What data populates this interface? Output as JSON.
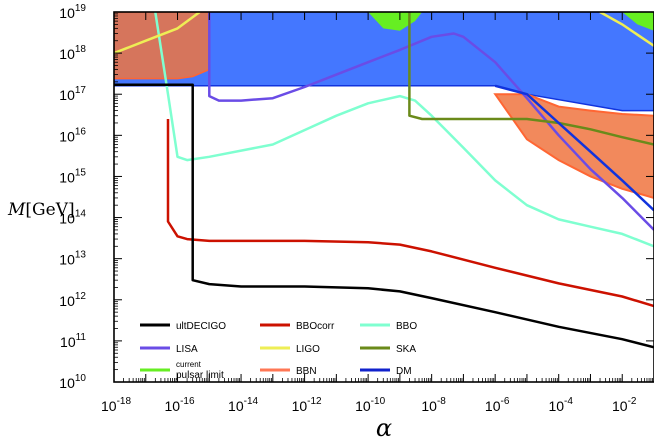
{
  "chart_data": {
    "type": "line",
    "title": "",
    "xlabel": "α",
    "ylabel_main": "M",
    "ylabel_unit": "[GeV]",
    "x_scale": "log",
    "y_scale": "log",
    "xlim": [
      1e-18,
      0.1
    ],
    "ylim": [
      10000000000.0,
      1e+19
    ],
    "x_tick_exponents": [
      "-18",
      "-16",
      "-14",
      "-12",
      "-10",
      "-8",
      "-6",
      "-4",
      "-2"
    ],
    "y_tick_exponents": [
      "10",
      "11",
      "12",
      "13",
      "14",
      "15",
      "16",
      "17",
      "18",
      "19"
    ],
    "tick_base": "10",
    "grid": false,
    "legend_position": "bottom-left inside",
    "legend": [
      {
        "key": "ultDECIGO",
        "label": "ultDECIGO",
        "color": "#000000"
      },
      {
        "key": "BBOcorr",
        "label": "BBOcorr",
        "color": "#cc1100"
      },
      {
        "key": "BBO",
        "label": "BBO",
        "color": "#7fffd0"
      },
      {
        "key": "LISA",
        "label": "LISA",
        "color": "#6a4ce6"
      },
      {
        "key": "LIGO",
        "label": "LIGO",
        "color": "#eeee55"
      },
      {
        "key": "SKA",
        "label": "SKA",
        "color": "#6a8a1a"
      },
      {
        "key": "pulsar",
        "label_line1": "current",
        "label_line2": "pulsar limit",
        "color": "#66ee22"
      },
      {
        "key": "BBN",
        "label": "BBN",
        "color": "#ff7755"
      },
      {
        "key": "DM",
        "label": "DM",
        "color": "#1122cc"
      }
    ],
    "regions": [
      {
        "key": "DM",
        "name": "DM",
        "fill": "#4477ff",
        "edge": "#1133dd",
        "points": [
          [
            1e-18,
            1e+19
          ],
          [
            0.1,
            1e+19
          ],
          [
            0.1,
            4e+16
          ],
          [
            0.01,
            4e+16
          ],
          [
            1e-05,
            1e+17
          ],
          [
            1e-06,
            1.6e+17
          ],
          [
            1e-17,
            1.6e+17
          ],
          [
            1e-18,
            1.6e+17
          ]
        ]
      },
      {
        "key": "pulsar",
        "name": "current pulsar limit",
        "fill": "#66ee22",
        "edge": "#55cc11",
        "points_a": [
          [
            1e-10,
            1e+19
          ],
          [
            3e-10,
            4e+18
          ],
          [
            1e-09,
            3.5e+18
          ],
          [
            3e-09,
            6e+18
          ],
          [
            5e-09,
            1e+19
          ]
        ],
        "points_b": [
          [
            0.01,
            1e+19
          ],
          [
            0.03,
            5e+18
          ],
          [
            0.1,
            3.5e+18
          ],
          [
            0.1,
            1e+19
          ]
        ]
      },
      {
        "key": "BBN",
        "name": "BBN",
        "fill": "#f0743f",
        "edge": "#ff6633",
        "points_a": [
          [
            1e-18,
            1e+19
          ],
          [
            1e-15,
            1e+19
          ],
          [
            1e-15,
            4e+17
          ],
          [
            3e-16,
            2.7e+17
          ],
          [
            1e-16,
            2.4e+17
          ],
          [
            1e-18,
            2.4e+17
          ]
        ],
        "points_b": [
          [
            1e-06,
            1e+17
          ],
          [
            3e-06,
            3e+16
          ],
          [
            1e-05,
            8000000000000000.0
          ],
          [
            0.0001,
            2500000000000000.0
          ],
          [
            0.001,
            1000000000000000.0
          ],
          [
            0.01,
            500000000000000.0
          ],
          [
            0.1,
            300000000000000.0
          ],
          [
            0.1,
            3e+16
          ],
          [
            0.01,
            3.3e+16
          ],
          [
            0.001,
            4e+16
          ],
          [
            0.0001,
            5e+16
          ],
          [
            1e-05,
            1e+17
          ]
        ]
      }
    ],
    "series": [
      {
        "key": "BBO",
        "name": "BBO",
        "color": "#7fffd0",
        "points": [
          [
            2e-17,
            1e+19
          ],
          [
            5e-17,
            1e+17
          ],
          [
            1e-16,
            3000000000000000.0
          ],
          [
            2e-16,
            2500000000000000.0
          ],
          [
            1e-15,
            3000000000000000.0
          ],
          [
            1e-13,
            6000000000000000.0
          ],
          [
            1e-11,
            3e+16
          ],
          [
            1e-10,
            6e+16
          ],
          [
            1e-09,
            9e+16
          ],
          [
            3e-09,
            7e+16
          ],
          [
            1e-08,
            3e+16
          ],
          [
            1e-07,
            5000000000000000.0
          ],
          [
            1e-06,
            800000000000000.0
          ],
          [
            1e-05,
            200000000000000.0
          ],
          [
            0.0001,
            90000000000000.0
          ],
          [
            0.001,
            60000000000000.0
          ],
          [
            0.01,
            40000000000000.0
          ],
          [
            0.1,
            20000000000000.0
          ]
        ]
      },
      {
        "key": "BBOcorr",
        "name": "BBOcorr",
        "color": "#cc1100",
        "points": [
          [
            5e-17,
            2.5e+16
          ],
          [
            5e-17,
            80000000000000.0
          ],
          [
            1e-16,
            35000000000000.0
          ],
          [
            2e-16,
            30000000000000.0
          ],
          [
            1e-15,
            27000000000000.0
          ],
          [
            1e-12,
            27000000000000.0
          ],
          [
            1e-10,
            25000000000000.0
          ],
          [
            1e-09,
            22000000000000.0
          ],
          [
            1e-08,
            15000000000000.0
          ],
          [
            1e-06,
            6000000000000.0
          ],
          [
            0.0001,
            2500000000000.0
          ],
          [
            0.01,
            1200000000000.0
          ],
          [
            0.1,
            700000000000.0
          ]
        ]
      },
      {
        "key": "ultDECIGO",
        "name": "ultDECIGO",
        "color": "#000000",
        "points": [
          [
            1e-18,
            1.7e+17
          ],
          [
            3e-16,
            1.7e+17
          ],
          [
            3e-16,
            3000000000000.0
          ],
          [
            1e-15,
            2400000000000.0
          ],
          [
            1e-14,
            2100000000000.0
          ],
          [
            1e-12,
            2100000000000.0
          ],
          [
            1e-10,
            1900000000000.0
          ],
          [
            1e-09,
            1600000000000.0
          ],
          [
            1e-08,
            1100000000000.0
          ],
          [
            1e-06,
            500000000000.0
          ],
          [
            0.0001,
            220000000000.0
          ],
          [
            0.01,
            110000000000.0
          ],
          [
            0.1,
            70000000000.0
          ]
        ]
      },
      {
        "key": "LISA",
        "name": "LISA",
        "color": "#6a4ce6",
        "points": [
          [
            1e-15,
            1e+19
          ],
          [
            1e-15,
            9e+16
          ],
          [
            2e-15,
            7e+16
          ],
          [
            1e-14,
            7e+16
          ],
          [
            1e-13,
            8e+16
          ],
          [
            1e-12,
            1.5e+17
          ],
          [
            1e-11,
            3e+17
          ],
          [
            1e-10,
            6e+17
          ],
          [
            1e-09,
            1.2e+18
          ],
          [
            1e-08,
            2.5e+18
          ],
          [
            5e-08,
            3e+18
          ],
          [
            1e-07,
            2.5e+18
          ],
          [
            1e-06,
            6e+17
          ],
          [
            1e-05,
            8e+16
          ],
          [
            0.0001,
            1e+16
          ],
          [
            0.001,
            1500000000000000.0
          ],
          [
            0.01,
            300000000000000.0
          ],
          [
            0.1,
            50000000000000.0
          ]
        ]
      },
      {
        "key": "LIGO",
        "name": "LIGO",
        "color": "#eeee55",
        "points": [
          [
            1e-18,
            1e+18
          ],
          [
            1e-17,
            2e+18
          ],
          [
            1e-16,
            4e+18
          ],
          [
            5e-16,
            1e+19
          ]
        ],
        "points_b": [
          [
            0.002,
            1e+19
          ],
          [
            0.01,
            5e+18
          ],
          [
            0.1,
            1.5e+18
          ]
        ]
      },
      {
        "key": "SKA",
        "name": "SKA",
        "color": "#6a8a1a",
        "points": [
          [
            2e-09,
            1e+19
          ],
          [
            2e-09,
            3e+16
          ],
          [
            5e-09,
            2.5e+16
          ],
          [
            1e-05,
            2.5e+16
          ],
          [
            0.0001,
            2e+16
          ],
          [
            0.001,
            1.4e+16
          ],
          [
            0.01,
            9000000000000000.0
          ],
          [
            0.1,
            6000000000000000.0
          ]
        ]
      },
      {
        "key": "DM_edge",
        "name": "DM",
        "color": "#1133dd",
        "points": [
          [
            1e-06,
            1.6e+17
          ],
          [
            1e-05,
            1e+17
          ],
          [
            0.0001,
            2e+16
          ],
          [
            0.001,
            4000000000000000.0
          ],
          [
            0.01,
            800000000000000.0
          ],
          [
            0.1,
            150000000000000.0
          ]
        ]
      }
    ]
  }
}
